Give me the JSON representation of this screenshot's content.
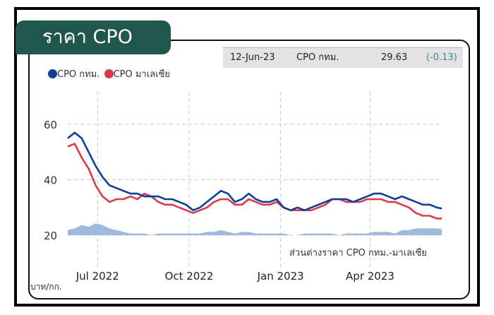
{
  "title": "ราคา CPO",
  "info": {
    "date": "12-Jun-23",
    "label": "CPO กทม.",
    "value": "29.63",
    "change": "(-0.13)"
  },
  "colors": {
    "bangkok": "#0d3f96",
    "malaysia": "#d83a4a",
    "spread": "#9ab6da",
    "title_bg": "#1f574c",
    "change": "#3a8c8c"
  },
  "unit_label": "บาท/กก.",
  "spread_label": "ส่วนต่างราคา CPO กทม.-มาเลเซีย",
  "chart_data": {
    "type": "line",
    "x_ticks": [
      "Jul 2022",
      "Oct 2022",
      "Jan 2023",
      "Apr 2023"
    ],
    "y_ticks": [
      "60",
      "40",
      "20"
    ],
    "ylim": [
      20,
      60
    ],
    "xlim": [
      "2022-06-01",
      "2023-06-12"
    ],
    "grid": "dashed vertical and horizontal",
    "legend_position": "top-left",
    "series": [
      {
        "name": "CPO กทม.",
        "type": "line",
        "x": [
          "2022-06-01",
          "2022-06-08",
          "2022-06-15",
          "2022-06-22",
          "2022-06-29",
          "2022-07-06",
          "2022-07-13",
          "2022-07-20",
          "2022-07-27",
          "2022-08-03",
          "2022-08-10",
          "2022-08-17",
          "2022-08-24",
          "2022-08-31",
          "2022-09-07",
          "2022-09-14",
          "2022-09-21",
          "2022-09-28",
          "2022-10-05",
          "2022-10-12",
          "2022-10-19",
          "2022-10-26",
          "2022-11-02",
          "2022-11-09",
          "2022-11-16",
          "2022-11-23",
          "2022-11-30",
          "2022-12-07",
          "2022-12-14",
          "2022-12-21",
          "2022-12-28",
          "2023-01-04",
          "2023-01-11",
          "2023-01-18",
          "2023-01-25",
          "2023-02-01",
          "2023-02-08",
          "2023-02-15",
          "2023-02-22",
          "2023-03-01",
          "2023-03-08",
          "2023-03-15",
          "2023-03-22",
          "2023-03-29",
          "2023-04-05",
          "2023-04-12",
          "2023-04-19",
          "2023-04-26",
          "2023-05-03",
          "2023-05-10",
          "2023-05-17",
          "2023-05-24",
          "2023-05-31",
          "2023-06-07",
          "2023-06-12"
        ],
        "values": [
          55,
          57,
          55,
          50,
          45,
          41,
          38,
          37,
          36,
          35,
          35,
          34,
          34,
          34,
          33,
          33,
          32,
          31,
          29,
          30,
          32,
          34,
          36,
          35,
          32,
          33,
          35,
          33,
          32,
          32,
          33,
          30,
          29,
          30,
          29,
          30,
          31,
          32,
          33,
          33,
          33,
          32,
          33,
          34,
          35,
          35,
          34,
          33,
          34,
          33,
          32,
          31,
          31,
          30,
          29.6
        ]
      },
      {
        "name": "CPO มาเลเซีย",
        "type": "line",
        "x": [
          "2022-06-01",
          "2022-06-08",
          "2022-06-15",
          "2022-06-22",
          "2022-06-29",
          "2022-07-06",
          "2022-07-13",
          "2022-07-20",
          "2022-07-27",
          "2022-08-03",
          "2022-08-10",
          "2022-08-17",
          "2022-08-24",
          "2022-08-31",
          "2022-09-07",
          "2022-09-14",
          "2022-09-21",
          "2022-09-28",
          "2022-10-05",
          "2022-10-12",
          "2022-10-19",
          "2022-10-26",
          "2022-11-02",
          "2022-11-09",
          "2022-11-16",
          "2022-11-23",
          "2022-11-30",
          "2022-12-07",
          "2022-12-14",
          "2022-12-21",
          "2022-12-28",
          "2023-01-04",
          "2023-01-11",
          "2023-01-18",
          "2023-01-25",
          "2023-02-01",
          "2023-02-08",
          "2023-02-15",
          "2023-02-22",
          "2023-03-01",
          "2023-03-08",
          "2023-03-15",
          "2023-03-22",
          "2023-03-29",
          "2023-04-05",
          "2023-04-12",
          "2023-04-19",
          "2023-04-26",
          "2023-05-03",
          "2023-05-10",
          "2023-05-17",
          "2023-05-24",
          "2023-05-31",
          "2023-06-07",
          "2023-06-12"
        ],
        "values": [
          52,
          53,
          48,
          44,
          38,
          34,
          32,
          33,
          33,
          34,
          33,
          35,
          34,
          32,
          31,
          31,
          30,
          29,
          28,
          29,
          30,
          32,
          33,
          33,
          31,
          31,
          33,
          32,
          31,
          31,
          32,
          30,
          29,
          29,
          29,
          29,
          30,
          31,
          33,
          33,
          32,
          32,
          32,
          33,
          33,
          33,
          32,
          32,
          31,
          30,
          28,
          27,
          27,
          26,
          26
        ]
      },
      {
        "name": "ส่วนต่างราคา CPO กทม.-มาเลเซีย",
        "type": "area",
        "x": [
          "2022-06-01",
          "2022-06-08",
          "2022-06-15",
          "2022-06-22",
          "2022-06-29",
          "2022-07-06",
          "2022-07-13",
          "2022-07-20",
          "2022-07-27",
          "2022-08-03",
          "2022-08-10",
          "2022-08-17",
          "2022-08-24",
          "2022-08-31",
          "2022-09-07",
          "2022-09-14",
          "2022-09-21",
          "2022-09-28",
          "2022-10-05",
          "2022-10-12",
          "2022-10-19",
          "2022-10-26",
          "2022-11-02",
          "2022-11-09",
          "2022-11-16",
          "2022-11-23",
          "2022-11-30",
          "2022-12-07",
          "2022-12-14",
          "2022-12-21",
          "2022-12-28",
          "2023-01-04",
          "2023-01-11",
          "2023-01-18",
          "2023-01-25",
          "2023-02-01",
          "2023-02-08",
          "2023-02-15",
          "2023-02-22",
          "2023-03-01",
          "2023-03-08",
          "2023-03-15",
          "2023-03-22",
          "2023-03-29",
          "2023-04-05",
          "2023-04-12",
          "2023-04-19",
          "2023-04-26",
          "2023-05-03",
          "2023-05-10",
          "2023-05-17",
          "2023-05-24",
          "2023-05-31",
          "2023-06-07",
          "2023-06-12"
        ],
        "values": [
          3,
          4,
          6,
          5,
          7,
          6,
          4,
          3,
          2,
          1,
          1,
          1,
          0,
          1,
          1,
          1,
          1,
          1,
          1,
          1,
          2,
          2,
          3,
          2,
          1,
          2,
          2,
          1,
          1,
          1,
          1,
          1,
          0,
          0,
          1,
          1,
          1,
          1,
          1,
          0,
          1,
          1,
          1,
          1,
          2,
          2,
          2,
          1,
          3,
          3,
          4,
          4,
          4,
          4,
          3.6
        ]
      }
    ]
  }
}
